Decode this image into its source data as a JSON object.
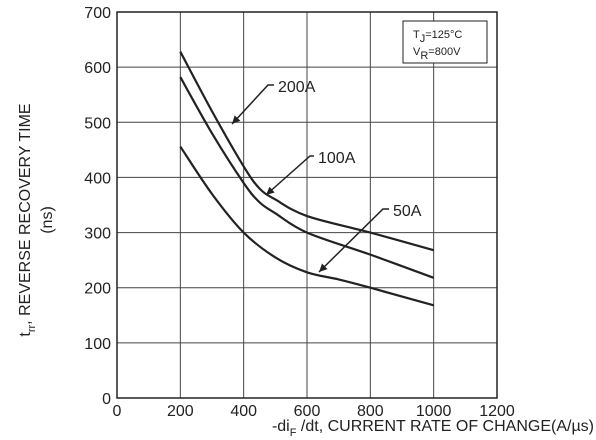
{
  "chart_data": {
    "type": "line",
    "ylabel_main": "t",
    "ylabel_sub": "rr",
    "ylabel_rest": ", REVERSE RECOVERY TIME",
    "ylabel_unit": "(ns)",
    "xlabel_main": "-di",
    "xlabel_sub": "F",
    "xlabel_rest": " /dt, CURRENT RATE OF CHANGE(A/µs)",
    "xlim": [
      0,
      1200
    ],
    "ylim": [
      0,
      700
    ],
    "xticks": [
      "0",
      "200",
      "400",
      "600",
      "800",
      "1000",
      "1200"
    ],
    "yticks": [
      "0",
      "100",
      "200",
      "300",
      "400",
      "500",
      "600",
      "700"
    ],
    "grid": true,
    "conditions": {
      "tj_main": "T",
      "tj_sub": "J",
      "tj_value": "=125°C",
      "vr_main": "V",
      "vr_sub": "R",
      "vr_value": "=800V"
    },
    "series": [
      {
        "name": "200A",
        "x": [
          200,
          300,
          400,
          450,
          500,
          600,
          800,
          1000
        ],
        "y": [
          628,
          520,
          420,
          380,
          360,
          330,
          300,
          268
        ]
      },
      {
        "name": "100A",
        "x": [
          200,
          300,
          400,
          450,
          500,
          600,
          800,
          1000
        ],
        "y": [
          582,
          480,
          390,
          355,
          335,
          300,
          260,
          218
        ]
      },
      {
        "name": "50A",
        "x": [
          200,
          300,
          400,
          500,
          600,
          700,
          800,
          1000
        ],
        "y": [
          456,
          370,
          300,
          255,
          228,
          215,
          200,
          168
        ]
      }
    ]
  }
}
